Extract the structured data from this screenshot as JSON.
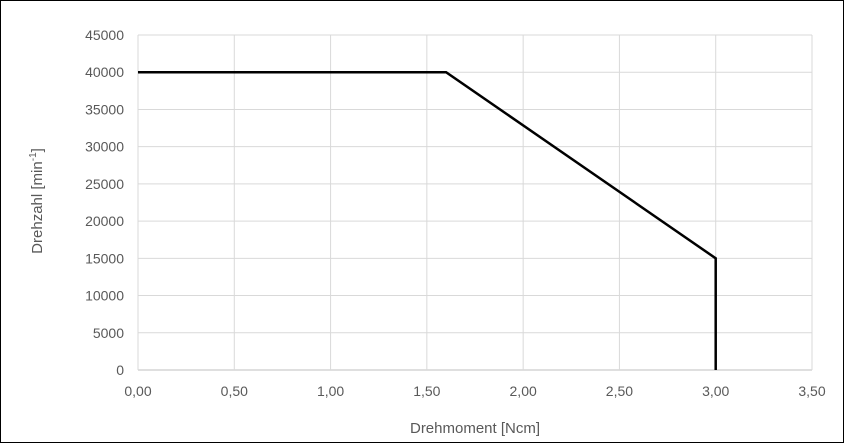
{
  "chart_data": {
    "type": "line",
    "title": "",
    "xlabel": "Drehmoment [Ncm]",
    "ylabel": {
      "prefix": "Drehzahl [min",
      "sup": "-1",
      "suffix": "]"
    },
    "xlim": [
      0,
      3.5
    ],
    "ylim": [
      0,
      45000
    ],
    "x_ticks": [
      0,
      0.5,
      1.0,
      1.5,
      2.0,
      2.5,
      3.0,
      3.5
    ],
    "x_tick_labels": [
      "0,00",
      "0,50",
      "1,00",
      "1,50",
      "2,00",
      "2,50",
      "3,00",
      "3,50"
    ],
    "y_ticks": [
      0,
      5000,
      10000,
      15000,
      20000,
      25000,
      30000,
      35000,
      40000,
      45000
    ],
    "y_tick_labels": [
      "0",
      "5000",
      "10000",
      "15000",
      "20000",
      "25000",
      "30000",
      "35000",
      "40000",
      "45000"
    ],
    "grid": true,
    "legend": "none",
    "series": [
      {
        "color": "#000000",
        "points": [
          [
            0,
            40000
          ],
          [
            1.6,
            40000
          ],
          [
            3.0,
            15000
          ],
          [
            3.0,
            0
          ]
        ]
      }
    ]
  }
}
